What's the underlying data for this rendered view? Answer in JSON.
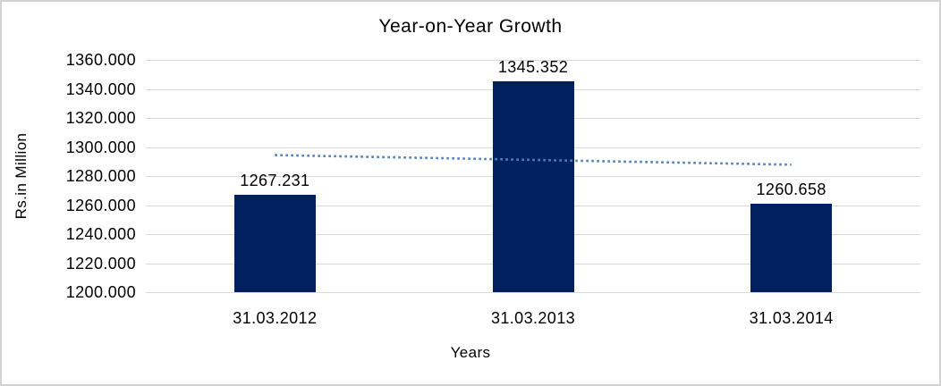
{
  "chart_data": {
    "type": "bar",
    "title": "Year-on-Year Growth",
    "categories": [
      "31.03.2012",
      "31.03.2013",
      "31.03.2014"
    ],
    "values": [
      1267.231,
      1345.352,
      1260.658
    ],
    "data_labels": [
      "1267.231",
      "1345.352",
      "1260.658"
    ],
    "xlabel": "Years",
    "ylabel": "Rs.in Million",
    "ylim": [
      1200,
      1360
    ],
    "ytick_step": 20,
    "ytick_labels": [
      "1200.000",
      "1220.000",
      "1240.000",
      "1260.000",
      "1280.000",
      "1300.000",
      "1320.000",
      "1340.000",
      "1360.000"
    ],
    "grid": true,
    "legend": "none",
    "bar_color": "#002060",
    "gridline_color": "#d9d9d9",
    "frame_border_color": "#d2d2d2",
    "text_color": "#000000",
    "trendline": {
      "type": "linear",
      "style": "dotted",
      "color": "#4f81bd",
      "start_value": 1294.4,
      "end_value": 1287.8
    }
  }
}
